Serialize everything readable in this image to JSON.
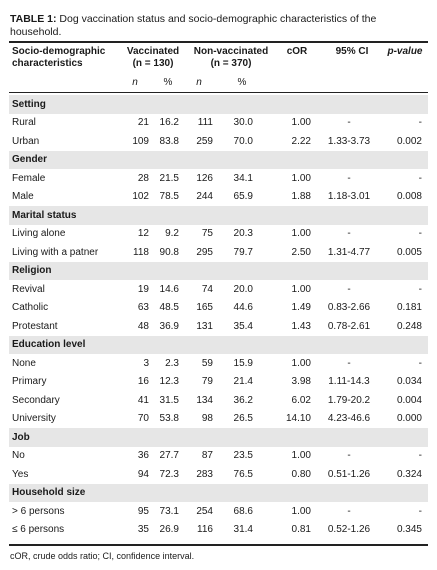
{
  "caption": {
    "label": "TABLE 1:",
    "text": " Dog vaccination status and socio-demographic characteristics of the household."
  },
  "header": {
    "col1_line1": "Socio-demographic",
    "col1_line2": "characteristics",
    "vaccinated_line1": "Vaccinated",
    "vaccinated_line2": "(n = 130)",
    "nonvaccinated_line1": "Non-vaccinated",
    "nonvaccinated_line2": "(n = 370)",
    "cor": "cOR",
    "ci": "95% CI",
    "pvalue": "p-value",
    "sub_n1": "n",
    "sub_pct1": "%",
    "sub_n2": "n",
    "sub_pct2": "%"
  },
  "sections": [
    {
      "title": "Setting",
      "rows": [
        [
          "Rural",
          "21",
          "16.2",
          "111",
          "30.0",
          "1.00",
          "-",
          "-"
        ],
        [
          "Urban",
          "109",
          "83.8",
          "259",
          "70.0",
          "2.22",
          "1.33-3.73",
          "0.002"
        ]
      ]
    },
    {
      "title": "Gender",
      "rows": [
        [
          "Female",
          "28",
          "21.5",
          "126",
          "34.1",
          "1.00",
          "-",
          "-"
        ],
        [
          "Male",
          "102",
          "78.5",
          "244",
          "65.9",
          "1.88",
          "1.18-3.01",
          "0.008"
        ]
      ]
    },
    {
      "title": "Marital status",
      "rows": [
        [
          "Living alone",
          "12",
          "9.2",
          "75",
          "20.3",
          "1.00",
          "-",
          "-"
        ],
        [
          "Living with a patner",
          "118",
          "90.8",
          "295",
          "79.7",
          "2.50",
          "1.31-4.77",
          "0.005"
        ]
      ]
    },
    {
      "title": "Religion",
      "rows": [
        [
          "Revival",
          "19",
          "14.6",
          "74",
          "20.0",
          "1.00",
          "-",
          "-"
        ],
        [
          "Catholic",
          "63",
          "48.5",
          "165",
          "44.6",
          "1.49",
          "0.83-2.66",
          "0.181"
        ],
        [
          "Protestant",
          "48",
          "36.9",
          "131",
          "35.4",
          "1.43",
          "0.78-2.61",
          "0.248"
        ]
      ]
    },
    {
      "title": "Education level",
      "rows": [
        [
          "None",
          "3",
          "2.3",
          "59",
          "15.9",
          "1.00",
          "-",
          "-"
        ],
        [
          "Primary",
          "16",
          "12.3",
          "79",
          "21.4",
          "3.98",
          "1.11-14.3",
          "0.034"
        ],
        [
          "Secondary",
          "41",
          "31.5",
          "134",
          "36.2",
          "6.02",
          "1.79-20.2",
          "0.004"
        ],
        [
          "University",
          "70",
          "53.8",
          "98",
          "26.5",
          "14.10",
          "4.23-46.6",
          "0.000"
        ]
      ]
    },
    {
      "title": "Job",
      "rows": [
        [
          "No",
          "36",
          "27.7",
          "87",
          "23.5",
          "1.00",
          "-",
          "-"
        ],
        [
          "Yes",
          "94",
          "72.3",
          "283",
          "76.5",
          "0.80",
          "0.51-1.26",
          "0.324"
        ]
      ]
    },
    {
      "title": "Household size",
      "rows": [
        [
          "> 6 persons",
          "95",
          "73.1",
          "254",
          "68.6",
          "1.00",
          "-",
          "-"
        ],
        [
          "≤ 6 persons",
          "35",
          "26.9",
          "116",
          "31.4",
          "0.81",
          "0.52-1.26",
          "0.345"
        ]
      ]
    }
  ],
  "footnote": "cOR, crude odds ratio; CI, confidence interval."
}
